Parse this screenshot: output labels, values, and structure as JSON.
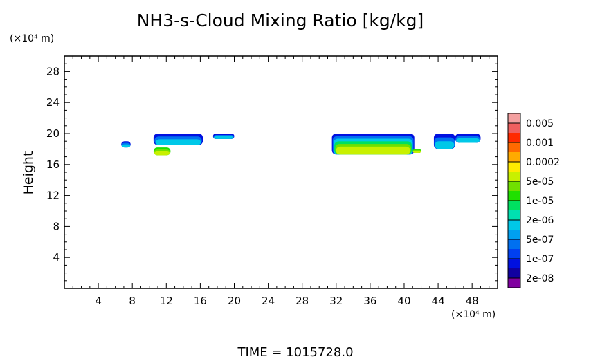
{
  "chart_data": {
    "type": "heatmap",
    "title": "NH3-s-Cloud Mixing Ratio [kg/kg]",
    "ylabel": "Height",
    "y_unit_label": "(×10⁴ m)",
    "x_unit_label": "(×10⁴ m)",
    "xlim": [
      0,
      51
    ],
    "ylim": [
      0,
      30
    ],
    "x_ticks": [
      4,
      8,
      12,
      16,
      20,
      24,
      28,
      32,
      36,
      40,
      44,
      48
    ],
    "y_ticks": [
      4,
      8,
      12,
      16,
      20,
      24,
      28
    ],
    "footer": "TIME = 1015728.0",
    "colorbar": {
      "labels": [
        "0.005",
        "0.001",
        "0.0002",
        "5e-05",
        "1e-05",
        "2e-06",
        "5e-07",
        "1e-07",
        "2e-08"
      ],
      "colors_top_to_bottom": [
        "#f4a0a0",
        "#f06060",
        "#ff2a00",
        "#ff6a00",
        "#ffaa00",
        "#ffea00",
        "#c8f000",
        "#70e000",
        "#20e000",
        "#00e060",
        "#00e0b0",
        "#00c8e8",
        "#00a0f0",
        "#0070f0",
        "#0040f0",
        "#0010e0",
        "#1000a0",
        "#8000a0"
      ]
    },
    "regions": [
      {
        "x": [
          6.7,
          7.8
        ],
        "y": [
          18.2,
          19.0
        ],
        "level": "low"
      },
      {
        "x": [
          10.5,
          16.3
        ],
        "y": [
          18.5,
          20.0
        ],
        "level": "low"
      },
      {
        "x": [
          10.5,
          12.5
        ],
        "y": [
          17.2,
          18.2
        ],
        "level": "mid"
      },
      {
        "x": [
          17.5,
          20.0
        ],
        "y": [
          19.3,
          20.0
        ],
        "level": "low"
      },
      {
        "x": [
          31.5,
          41.2
        ],
        "y": [
          17.3,
          20.0
        ],
        "level": "high"
      },
      {
        "x": [
          41.0,
          42.0
        ],
        "y": [
          17.5,
          18.0
        ],
        "level": "mid"
      },
      {
        "x": [
          43.5,
          46.0
        ],
        "y": [
          18.0,
          20.0
        ],
        "level": "low"
      },
      {
        "x": [
          46.0,
          49.0
        ],
        "y": [
          18.8,
          20.0
        ],
        "level": "low"
      }
    ]
  }
}
